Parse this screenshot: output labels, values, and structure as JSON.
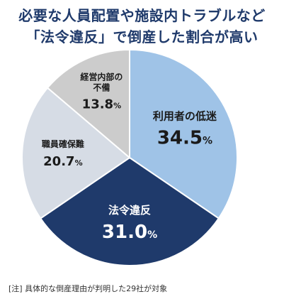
{
  "title_lines": [
    "必要な人員配置や施設内トラブルなど",
    "「法令違反」で倒産した割合が高い"
  ],
  "footnote": "[注] 具体的な倒産理由が判明した29社が対象",
  "chart_data": {
    "type": "pie",
    "unit": "%",
    "slices": [
      {
        "label": "利用者の低迷",
        "value": 34.5,
        "color": "#9fc3e7",
        "text_color": "#1a1a1a"
      },
      {
        "label": "法令違反",
        "value": 31.0,
        "color": "#1f3a6b",
        "text_color": "#ffffff"
      },
      {
        "label": "職員確保難",
        "value": 20.7,
        "color": "#d6dce5",
        "text_color": "#1a1a1a"
      },
      {
        "label": "経営内部の\n不備",
        "value": 13.8,
        "color": "#cccccc",
        "text_color": "#1a1a1a"
      }
    ]
  }
}
